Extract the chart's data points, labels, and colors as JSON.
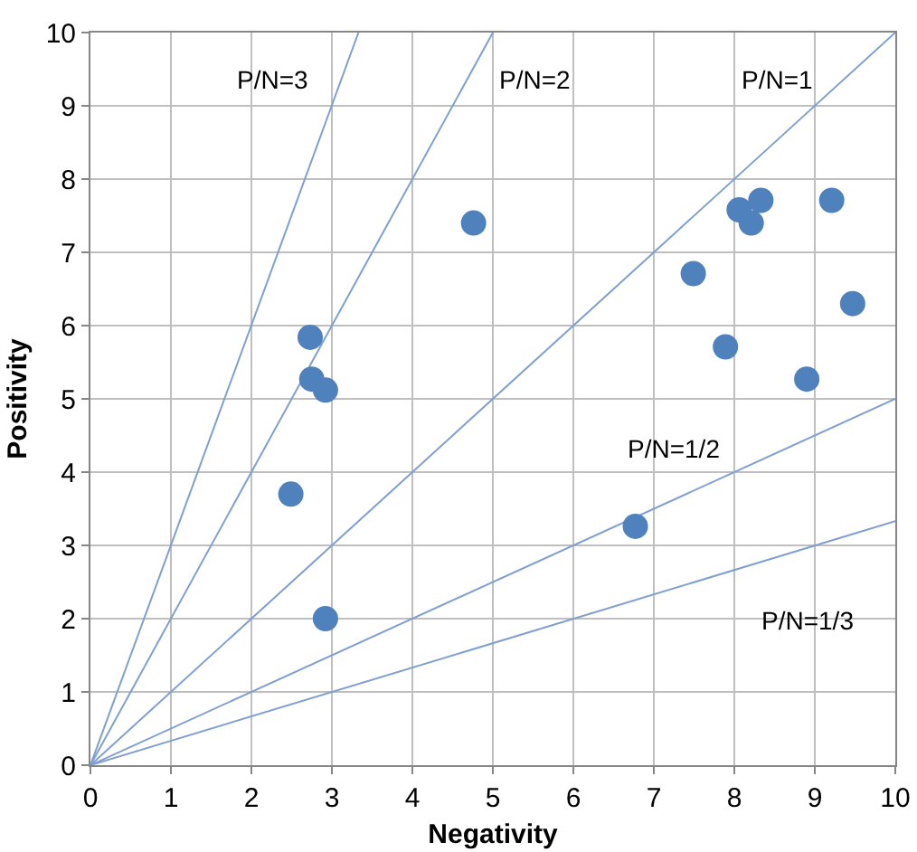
{
  "chart_data": {
    "type": "scatter",
    "xlabel": "Negativity",
    "ylabel": "Positivity",
    "xlim": [
      0,
      10
    ],
    "ylim": [
      0,
      10
    ],
    "xticks": [
      0,
      1,
      2,
      3,
      4,
      5,
      6,
      7,
      8,
      9,
      10
    ],
    "yticks": [
      0,
      1,
      2,
      3,
      4,
      5,
      6,
      7,
      8,
      9,
      10
    ],
    "grid": true,
    "series": [
      {
        "color": "#4f81bd",
        "marker": "circle",
        "x": [
          2.49,
          2.73,
          2.75,
          2.92,
          2.92,
          4.76,
          6.77,
          7.49,
          7.89,
          8.06,
          8.21,
          8.33,
          9.21,
          8.9,
          9.47
        ],
        "values": [
          3.7,
          5.84,
          5.27,
          5.12,
          2.0,
          7.4,
          3.26,
          6.71,
          5.71,
          7.58,
          7.4,
          7.71,
          7.71,
          5.27,
          6.3
        ]
      },
      {
        "type": "line",
        "name": "P/N=3",
        "color": "#7f9fd0",
        "line_style": "solid",
        "marker": "none",
        "x": [
          0,
          3.33
        ],
        "values": [
          0,
          10
        ]
      },
      {
        "type": "line",
        "name": "P/N=2",
        "color": "#7f9fd0",
        "line_style": "solid",
        "marker": "none",
        "x": [
          0,
          5
        ],
        "values": [
          0,
          10
        ]
      },
      {
        "type": "line",
        "name": "P/N=1",
        "color": "#7f9fd0",
        "line_style": "solid",
        "marker": "none",
        "x": [
          0,
          10
        ],
        "values": [
          0,
          10
        ]
      },
      {
        "type": "line",
        "name": "P/N=1/2",
        "color": "#7f9fd0",
        "line_style": "solid",
        "marker": "none",
        "x": [
          0,
          10
        ],
        "values": [
          0,
          5
        ]
      },
      {
        "type": "line",
        "name": "P/N=1/3",
        "color": "#7f9fd0",
        "line_style": "solid",
        "marker": "none",
        "x": [
          0,
          10
        ],
        "values": [
          0,
          3.33
        ]
      }
    ]
  }
}
